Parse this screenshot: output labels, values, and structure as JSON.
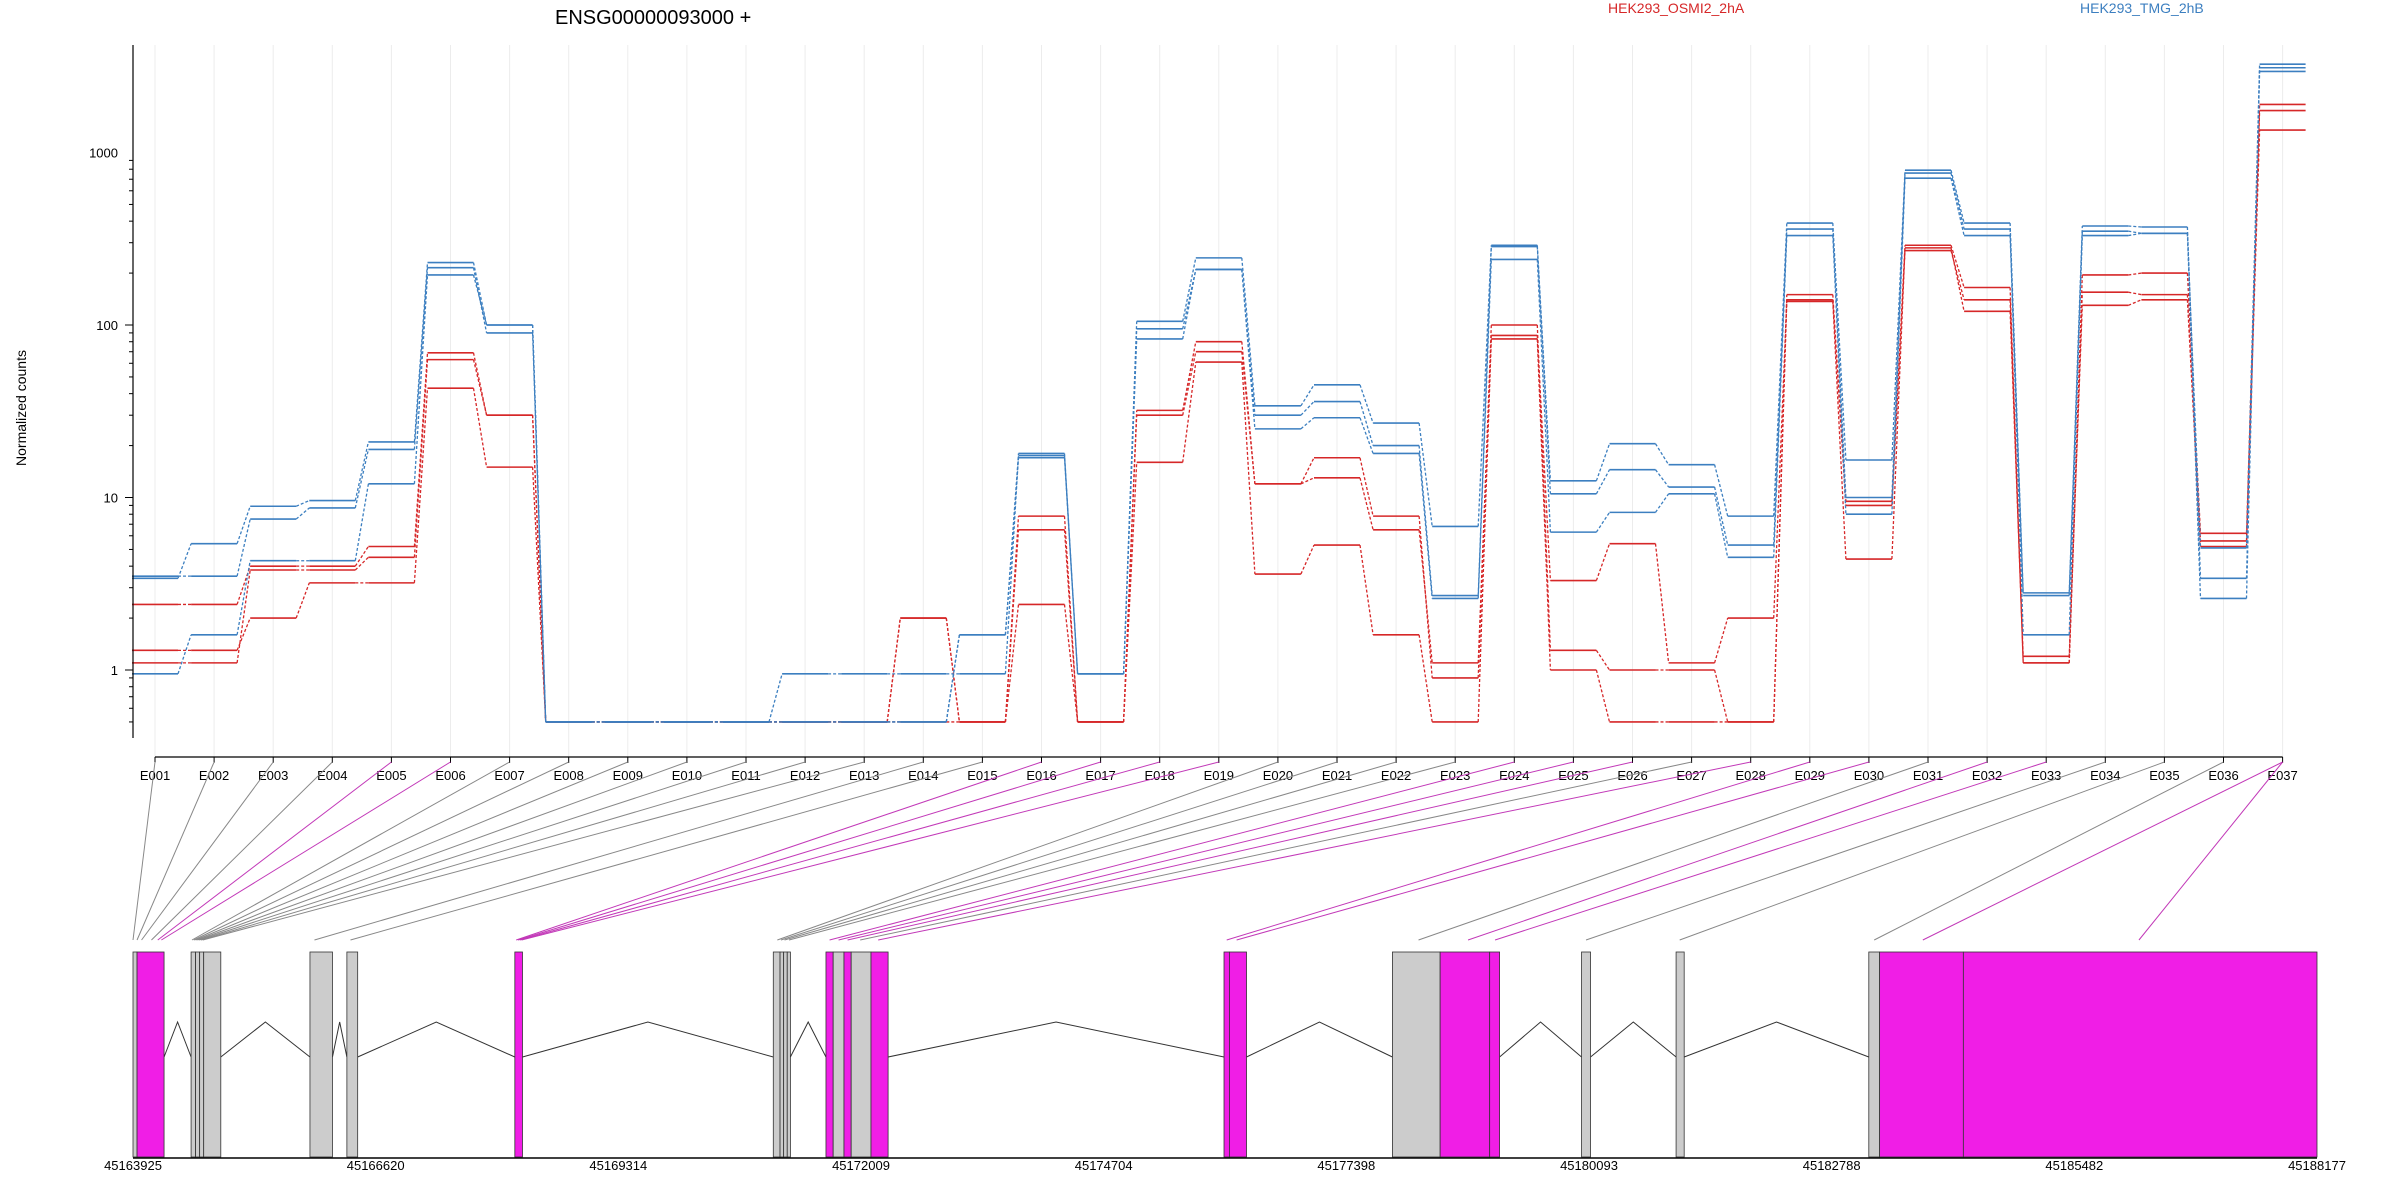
{
  "chart_data": {
    "type": "line",
    "title": "ENSG00000093000 +",
    "ylabel": "Normalized counts",
    "xlabel": "",
    "y_scale": "log",
    "ylim": [
      0.42,
      4200
    ],
    "y_ticks": [
      "1",
      "10",
      "100",
      "1000"
    ],
    "grid": "vertical",
    "legend_placement": "top",
    "categories": [
      "E001",
      "E002",
      "E003",
      "E004",
      "E005",
      "E006",
      "E007",
      "E008",
      "E009",
      "E010",
      "E011",
      "E012",
      "E013",
      "E014",
      "E015",
      "E016",
      "E017",
      "E018",
      "E019",
      "E020",
      "E021",
      "E022",
      "E023",
      "E024",
      "E025",
      "E026",
      "E027",
      "E028",
      "E029",
      "E030",
      "E031",
      "E032",
      "E033",
      "E034",
      "E035",
      "E036",
      "E037"
    ],
    "series": [
      {
        "name": "HEK293_OSMI2_2hA",
        "color": "#d62728",
        "values": [
          1.3,
          1.3,
          2.0,
          3.2,
          3.2,
          43,
          15,
          0.5,
          0.5,
          0.5,
          0.5,
          0.5,
          0.5,
          0.5,
          0.5,
          2.4,
          0.5,
          16,
          61,
          3.6,
          5.3,
          1.6,
          0.5,
          83,
          1.0,
          0.5,
          0.5,
          0.5,
          137,
          4.4,
          280,
          120,
          1.2,
          130,
          140,
          5.2,
          1350
        ]
      },
      {
        "name": "HEK293_OSMI2_2hA",
        "color": "#d62728",
        "values": [
          1.1,
          1.1,
          3.8,
          3.8,
          4.5,
          63,
          30,
          0.5,
          0.5,
          0.5,
          0.5,
          0.5,
          0.5,
          2.0,
          0.5,
          6.5,
          0.5,
          30,
          70,
          12,
          13,
          6.5,
          1.1,
          87,
          3.3,
          5.4,
          1.1,
          2.0,
          140,
          9.0,
          270,
          140,
          1.1,
          155,
          150,
          5.6,
          1750
        ]
      },
      {
        "name": "HEK293_OSMI2_2hA",
        "color": "#d62728",
        "values": [
          2.4,
          2.4,
          4.0,
          4.0,
          5.2,
          69,
          30,
          0.5,
          0.5,
          0.5,
          0.5,
          0.5,
          0.5,
          2.0,
          0.5,
          7.8,
          0.5,
          32,
          80,
          12,
          17,
          7.8,
          0.9,
          100,
          1.3,
          1.0,
          1.0,
          0.5,
          150,
          9.5,
          290,
          165,
          1.1,
          195,
          200,
          6.2,
          1900
        ]
      },
      {
        "name": "HEK293_TMG_2hB",
        "color": "#3c7fc0",
        "values": [
          0.95,
          1.6,
          4.3,
          4.3,
          12,
          195,
          100,
          0.5,
          0.5,
          0.5,
          0.5,
          0.5,
          0.5,
          0.5,
          1.6,
          17,
          0.95,
          83,
          210,
          25,
          29,
          18,
          2.6,
          240,
          6.3,
          8.2,
          10.5,
          4.5,
          330,
          8.0,
          710,
          330,
          2.7,
          330,
          340,
          2.6,
          2950
        ]
      },
      {
        "name": "HEK293_TMG_2hB",
        "color": "#3c7fc0",
        "values": [
          3.5,
          3.5,
          7.5,
          8.7,
          19,
          215,
          90,
          0.5,
          0.5,
          0.5,
          0.5,
          0.95,
          0.95,
          0.95,
          0.95,
          17.5,
          0.95,
          95,
          210,
          30,
          36,
          20,
          2.7,
          285,
          10.5,
          14.5,
          11.5,
          5.3,
          360,
          10,
          760,
          360,
          1.6,
          350,
          340,
          5.1,
          3100
        ]
      },
      {
        "name": "HEK293_TMG_2hB",
        "color": "#3c7fc0",
        "values": [
          3.4,
          5.4,
          8.9,
          9.6,
          21,
          230,
          100,
          0.5,
          0.5,
          0.5,
          0.5,
          0.5,
          0.5,
          0.5,
          1.6,
          18,
          0.95,
          105,
          245,
          34,
          45,
          27,
          6.8,
          290,
          12.5,
          20.5,
          15.5,
          7.8,
          390,
          16.5,
          790,
          390,
          2.8,
          375,
          370,
          3.4,
          3250
        ]
      }
    ],
    "legend": [
      "HEK293_OSMI2_2hA",
      "HEK293_TMG_2hB"
    ]
  },
  "gene_model": {
    "coordinate_ticks": [
      "45163925",
      "45166620",
      "45169314",
      "45172009",
      "45174704",
      "45177398",
      "45180093",
      "45182788",
      "45185482",
      "45188177"
    ],
    "coord_range": [
      45163925,
      45188177
    ],
    "highlight_color": "#f01ee6",
    "plain_color": "#cccccc",
    "exons": [
      {
        "id": "E001",
        "start": 45163925,
        "end": 45163970,
        "highlight": false
      },
      {
        "id": "E002",
        "start": 45163970,
        "end": 45164270,
        "highlight": true
      },
      {
        "id": "E003",
        "start": 45164570,
        "end": 45164620,
        "highlight": false
      },
      {
        "id": "E004",
        "start": 45164620,
        "end": 45164665,
        "highlight": false
      },
      {
        "id": "E005",
        "start": 45164665,
        "end": 45164710,
        "highlight": false
      },
      {
        "id": "E006",
        "start": 45164710,
        "end": 45164900,
        "highlight": false
      },
      {
        "id": "E007",
        "start": 45165890,
        "end": 45166140,
        "highlight": false
      },
      {
        "id": "E008",
        "start": 45166300,
        "end": 45166420,
        "highlight": false
      },
      {
        "id": "E009",
        "start": 45168165,
        "end": 45168250,
        "highlight": true
      },
      {
        "id": "E010",
        "start": 45171035,
        "end": 45171110,
        "highlight": false
      },
      {
        "id": "E011",
        "start": 45171110,
        "end": 45171150,
        "highlight": false
      },
      {
        "id": "E012",
        "start": 45171150,
        "end": 45171190,
        "highlight": false
      },
      {
        "id": "E013",
        "start": 45171190,
        "end": 45171225,
        "highlight": false
      },
      {
        "id": "E014",
        "start": 45171620,
        "end": 45171700,
        "highlight": true
      },
      {
        "id": "E015",
        "start": 45171700,
        "end": 45171820,
        "highlight": false
      },
      {
        "id": "E016",
        "start": 45171820,
        "end": 45171900,
        "highlight": true
      },
      {
        "id": "E017",
        "start": 45171900,
        "end": 45172120,
        "highlight": false
      },
      {
        "id": "E018",
        "start": 45172120,
        "end": 45172310,
        "highlight": true
      },
      {
        "id": "E019",
        "start": 45176040,
        "end": 45176100,
        "highlight": true
      },
      {
        "id": "E020",
        "start": 45176100,
        "end": 45176290,
        "highlight": true
      },
      {
        "id": "E021",
        "start": 45177910,
        "end": 45178440,
        "highlight": false
      },
      {
        "id": "E022",
        "start": 45178440,
        "end": 45178990,
        "highlight": true
      },
      {
        "id": "E023",
        "start": 45178990,
        "end": 45179100,
        "highlight": true
      },
      {
        "id": "E024",
        "start": 45180010,
        "end": 45180110,
        "highlight": false
      },
      {
        "id": "E025",
        "start": 45181060,
        "end": 45181150,
        "highlight": false
      },
      {
        "id": "E026",
        "start": 45183200,
        "end": 45183320,
        "highlight": false
      },
      {
        "id": "E027",
        "start": 45183320,
        "end": 45184250,
        "highlight": true
      },
      {
        "id": "E028",
        "start": 45184250,
        "end": 45188177,
        "highlight": true
      }
    ],
    "connectors": [
      {
        "exon": "E001",
        "g": 45163925,
        "highlight": false
      },
      {
        "exon": "E002",
        "g": 45163970,
        "highlight": false
      },
      {
        "exon": "E003",
        "g": 45164020,
        "highlight": false
      },
      {
        "exon": "E004",
        "g": 45164130,
        "highlight": false
      },
      {
        "exon": "E005",
        "g": 45164200,
        "highlight": true
      },
      {
        "exon": "E006",
        "g": 45164240,
        "highlight": true
      },
      {
        "exon": "E007",
        "g": 45164580,
        "highlight": false
      },
      {
        "exon": "E008",
        "g": 45164600,
        "highlight": false
      },
      {
        "exon": "E009",
        "g": 45164620,
        "highlight": false
      },
      {
        "exon": "E010",
        "g": 45164640,
        "highlight": false
      },
      {
        "exon": "E011",
        "g": 45164660,
        "highlight": false
      },
      {
        "exon": "E012",
        "g": 45164680,
        "highlight": false
      },
      {
        "exon": "E013",
        "g": 45164700,
        "highlight": false
      },
      {
        "exon": "E014",
        "g": 45165940,
        "highlight": false
      },
      {
        "exon": "E015",
        "g": 45166340,
        "highlight": false
      },
      {
        "exon": "E016",
        "g": 45168180,
        "highlight": true
      },
      {
        "exon": "E017",
        "g": 45168200,
        "highlight": true
      },
      {
        "exon": "E018",
        "g": 45168220,
        "highlight": true
      },
      {
        "exon": "E019",
        "g": 45168240,
        "highlight": true
      },
      {
        "exon": "E020",
        "g": 45171080,
        "highlight": false
      },
      {
        "exon": "E021",
        "g": 45171120,
        "highlight": false
      },
      {
        "exon": "E022",
        "g": 45171160,
        "highlight": false
      },
      {
        "exon": "E023",
        "g": 45171210,
        "highlight": false
      },
      {
        "exon": "E024",
        "g": 45171660,
        "highlight": true
      },
      {
        "exon": "E025",
        "g": 45171760,
        "highlight": true
      },
      {
        "exon": "E026",
        "g": 45171860,
        "highlight": true
      },
      {
        "exon": "E027",
        "g": 45172000,
        "highlight": false
      },
      {
        "exon": "E028",
        "g": 45172200,
        "highlight": true
      },
      {
        "exon": "E029",
        "g": 45176070,
        "highlight": true
      },
      {
        "exon": "E030",
        "g": 45176180,
        "highlight": true
      },
      {
        "exon": "E031",
        "g": 45178200,
        "highlight": false
      },
      {
        "exon": "E032",
        "g": 45178750,
        "highlight": true
      },
      {
        "exon": "E033",
        "g": 45179050,
        "highlight": true
      },
      {
        "exon": "E034",
        "g": 45180060,
        "highlight": false
      },
      {
        "exon": "E035",
        "g": 45181100,
        "highlight": false
      },
      {
        "exon": "E036",
        "g": 45183260,
        "highlight": false
      },
      {
        "exon": "E037",
        "g": 45183800,
        "highlight": true
      },
      {
        "exon": "E037",
        "g": 45186200,
        "highlight": true
      }
    ]
  }
}
